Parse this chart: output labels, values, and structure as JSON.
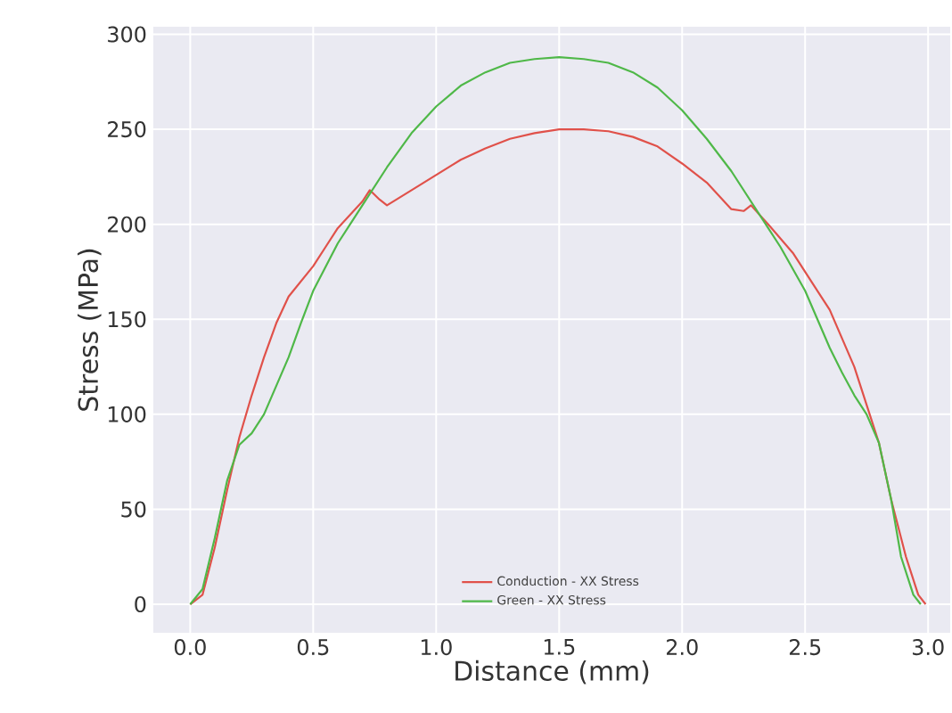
{
  "chart_data": {
    "type": "line",
    "xlabel": "Distance (mm)",
    "ylabel": "Stress (MPa)",
    "xlim": [
      -0.15,
      3.09
    ],
    "ylim": [
      -15,
      304
    ],
    "xticks": [
      {
        "value": 0,
        "label": "0.0"
      },
      {
        "value": 0.5,
        "label": "0.5"
      },
      {
        "value": 1,
        "label": "1.0"
      },
      {
        "value": 1.5,
        "label": "1.5"
      },
      {
        "value": 2,
        "label": "2.0"
      },
      {
        "value": 2.5,
        "label": "2.5"
      },
      {
        "value": 3,
        "label": "3.0"
      }
    ],
    "yticks": [
      0,
      50,
      100,
      150,
      200,
      250,
      300
    ],
    "grid": true,
    "legend": "bottom",
    "line_style": "solid",
    "marker": "none",
    "series": [
      {
        "name": "Conduction - XX Stress",
        "color": "#e0514a",
        "x": [
          0,
          0.05,
          0.1,
          0.15,
          0.2,
          0.25,
          0.3,
          0.35,
          0.4,
          0.45,
          0.5,
          0.55,
          0.6,
          0.65,
          0.7,
          0.73,
          0.77,
          0.8,
          0.85,
          0.9,
          1.0,
          1.1,
          1.2,
          1.3,
          1.4,
          1.5,
          1.6,
          1.7,
          1.8,
          1.9,
          2.0,
          2.1,
          2.2,
          2.25,
          2.28,
          2.35,
          2.45,
          2.55,
          2.6,
          2.7,
          2.75,
          2.8,
          2.85,
          2.91,
          2.96,
          2.99
        ],
        "values": [
          0,
          5,
          30,
          60,
          88,
          110,
          130,
          148,
          162,
          170,
          178,
          188,
          198,
          205,
          212,
          218,
          213,
          210,
          214,
          218,
          226,
          234,
          240,
          245,
          248,
          250,
          250,
          249,
          246,
          241,
          232,
          222,
          208,
          207,
          210,
          200,
          185,
          165,
          155,
          125,
          105,
          85,
          55,
          25,
          5,
          0
        ]
      },
      {
        "name": "Green - XX Stress",
        "color": "#4fb848",
        "x": [
          0,
          0.05,
          0.1,
          0.15,
          0.2,
          0.25,
          0.3,
          0.35,
          0.4,
          0.45,
          0.5,
          0.6,
          0.7,
          0.8,
          0.9,
          1.0,
          1.1,
          1.2,
          1.3,
          1.4,
          1.5,
          1.6,
          1.7,
          1.8,
          1.9,
          2.0,
          2.1,
          2.2,
          2.3,
          2.4,
          2.5,
          2.55,
          2.6,
          2.65,
          2.7,
          2.75,
          2.8,
          2.85,
          2.89,
          2.94,
          2.97
        ],
        "values": [
          0,
          8,
          35,
          65,
          84,
          90,
          100,
          115,
          130,
          148,
          165,
          190,
          210,
          230,
          248,
          262,
          273,
          280,
          285,
          287,
          288,
          287,
          285,
          280,
          272,
          260,
          245,
          228,
          208,
          188,
          165,
          150,
          135,
          122,
          110,
          100,
          85,
          55,
          25,
          5,
          0
        ]
      }
    ]
  }
}
